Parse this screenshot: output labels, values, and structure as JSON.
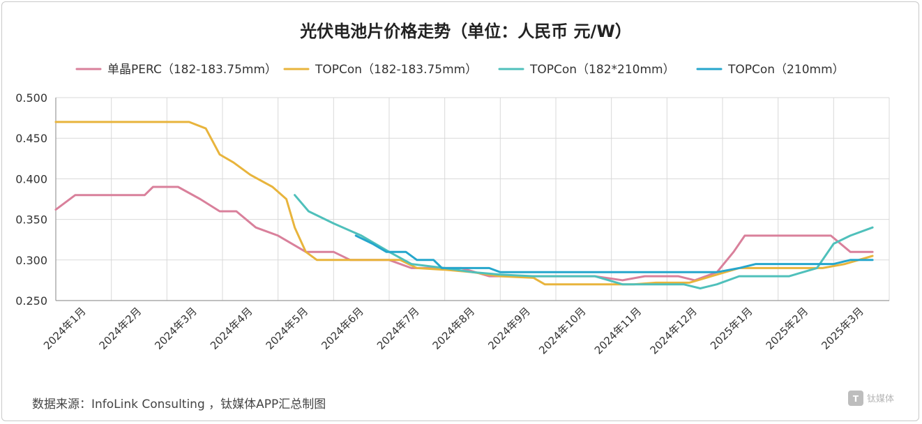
{
  "chart_data": {
    "type": "line",
    "title": "光伏电池片价格走势（单位：人民币 元/W）",
    "source": "数据来源：InfoLink Consulting ，钛媒体APP汇总制图",
    "watermark": "钛媒体",
    "ylim": [
      0.25,
      0.5
    ],
    "yticks": [
      "0.500",
      "0.450",
      "0.400",
      "0.350",
      "0.300",
      "0.250"
    ],
    "categories": [
      "2024年1月",
      "2024年2月",
      "2024年3月",
      "2024年4月",
      "2024年5月",
      "2024年6月",
      "2024年7月",
      "2024年8月",
      "2024年9月",
      "2024年10月",
      "2024年11月",
      "2024年12月",
      "2025年1月",
      "2025年2月",
      "2025年3月"
    ],
    "grid": true,
    "legend_position": "top",
    "series": [
      {
        "name": "单晶PERC（182-183.75mm）",
        "color": "#d9809b",
        "points": [
          [
            0,
            0.362
          ],
          [
            0.35,
            0.38
          ],
          [
            1.6,
            0.38
          ],
          [
            1.75,
            0.39
          ],
          [
            2.2,
            0.39
          ],
          [
            2.6,
            0.375
          ],
          [
            2.95,
            0.36
          ],
          [
            3.25,
            0.36
          ],
          [
            3.6,
            0.34
          ],
          [
            4.0,
            0.33
          ],
          [
            4.5,
            0.31
          ],
          [
            5.0,
            0.31
          ],
          [
            5.3,
            0.3
          ],
          [
            6.0,
            0.3
          ],
          [
            6.4,
            0.29
          ],
          [
            7.3,
            0.29
          ],
          [
            7.8,
            0.28
          ],
          [
            9.2,
            0.28
          ],
          [
            9.7,
            0.28
          ],
          [
            10.2,
            0.275
          ],
          [
            10.6,
            0.28
          ],
          [
            11.2,
            0.28
          ],
          [
            11.5,
            0.275
          ],
          [
            11.9,
            0.285
          ],
          [
            12.2,
            0.31
          ],
          [
            12.4,
            0.33
          ],
          [
            13.6,
            0.33
          ],
          [
            13.95,
            0.33
          ],
          [
            14.3,
            0.31
          ],
          [
            14.7,
            0.31
          ]
        ]
      },
      {
        "name": "TOPCon（182-183.75mm）",
        "color": "#e8b43c",
        "points": [
          [
            0,
            0.47
          ],
          [
            2.4,
            0.47
          ],
          [
            2.7,
            0.462
          ],
          [
            2.95,
            0.43
          ],
          [
            3.2,
            0.42
          ],
          [
            3.5,
            0.405
          ],
          [
            3.9,
            0.39
          ],
          [
            4.15,
            0.375
          ],
          [
            4.3,
            0.34
          ],
          [
            4.5,
            0.31
          ],
          [
            4.7,
            0.3
          ],
          [
            5.3,
            0.3
          ],
          [
            6.2,
            0.3
          ],
          [
            6.5,
            0.29
          ],
          [
            7.0,
            0.288
          ],
          [
            7.5,
            0.285
          ],
          [
            8.0,
            0.28
          ],
          [
            8.6,
            0.278
          ],
          [
            8.8,
            0.27
          ],
          [
            9.5,
            0.27
          ],
          [
            10.4,
            0.27
          ],
          [
            10.8,
            0.272
          ],
          [
            11.4,
            0.272
          ],
          [
            11.8,
            0.28
          ],
          [
            12.3,
            0.29
          ],
          [
            13.0,
            0.29
          ],
          [
            13.8,
            0.29
          ],
          [
            14.2,
            0.295
          ],
          [
            14.7,
            0.305
          ]
        ]
      },
      {
        "name": "TOPCon（182*210mm）",
        "color": "#4fc0bb",
        "points": [
          [
            4.3,
            0.38
          ],
          [
            4.55,
            0.36
          ],
          [
            5.0,
            0.345
          ],
          [
            5.5,
            0.33
          ],
          [
            6.0,
            0.31
          ],
          [
            6.4,
            0.295
          ],
          [
            7.0,
            0.29
          ],
          [
            7.5,
            0.285
          ],
          [
            8.0,
            0.282
          ],
          [
            8.6,
            0.28
          ],
          [
            9.2,
            0.28
          ],
          [
            9.7,
            0.28
          ],
          [
            10.2,
            0.27
          ],
          [
            10.6,
            0.27
          ],
          [
            11.3,
            0.27
          ],
          [
            11.6,
            0.265
          ],
          [
            11.9,
            0.27
          ],
          [
            12.3,
            0.28
          ],
          [
            13.0,
            0.28
          ],
          [
            13.2,
            0.28
          ],
          [
            13.7,
            0.29
          ],
          [
            14.0,
            0.32
          ],
          [
            14.3,
            0.33
          ],
          [
            14.7,
            0.34
          ]
        ]
      },
      {
        "name": "TOPCon（210mm）",
        "color": "#25a6cc",
        "points": [
          [
            5.4,
            0.33
          ],
          [
            5.7,
            0.32
          ],
          [
            5.95,
            0.31
          ],
          [
            6.3,
            0.31
          ],
          [
            6.5,
            0.3
          ],
          [
            6.8,
            0.3
          ],
          [
            6.95,
            0.29
          ],
          [
            7.4,
            0.29
          ],
          [
            7.8,
            0.29
          ],
          [
            8.0,
            0.285
          ],
          [
            8.5,
            0.285
          ],
          [
            9.5,
            0.285
          ],
          [
            10.5,
            0.285
          ],
          [
            11.5,
            0.285
          ],
          [
            11.9,
            0.285
          ],
          [
            12.3,
            0.29
          ],
          [
            12.6,
            0.295
          ],
          [
            13.5,
            0.295
          ],
          [
            14.0,
            0.295
          ],
          [
            14.3,
            0.3
          ],
          [
            14.7,
            0.3
          ]
        ]
      }
    ]
  }
}
